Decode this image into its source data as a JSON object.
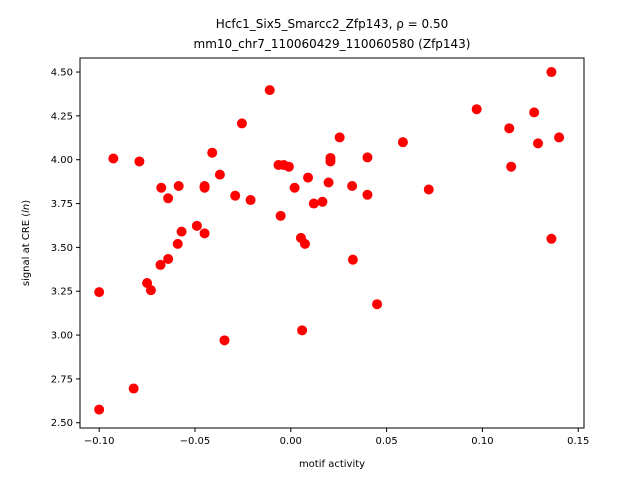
{
  "chart_data": {
    "type": "scatter",
    "title_line1": "Hcfc1_Six5_Smarcc2_Zfp143, ρ = 0.50",
    "title_line2": "mm10_chr7_110060429_110060580 (Zfp143)",
    "xlabel": "motif activity",
    "ylabel": "signal at CRE (ln)",
    "xlim": [
      -0.11,
      0.153
    ],
    "ylim": [
      2.47,
      4.58
    ],
    "xticks": [
      -0.1,
      -0.05,
      0.0,
      0.05,
      0.1,
      0.15
    ],
    "xtick_labels": [
      "−0.10",
      "−0.05",
      "0.00",
      "0.05",
      "0.10",
      "0.15"
    ],
    "yticks": [
      2.5,
      2.75,
      3.0,
      3.25,
      3.5,
      3.75,
      4.0,
      4.25,
      4.5
    ],
    "ytick_labels": [
      "2.50",
      "2.75",
      "3.00",
      "3.25",
      "3.50",
      "3.75",
      "4.00",
      "4.25",
      "4.50"
    ],
    "marker_color": "#ff0000",
    "points": [
      [
        -0.1,
        3.245
      ],
      [
        -0.1,
        2.575
      ],
      [
        -0.0926,
        4.007
      ],
      [
        -0.082,
        2.695
      ],
      [
        -0.079,
        3.99
      ],
      [
        -0.075,
        3.297
      ],
      [
        -0.073,
        3.256
      ],
      [
        -0.068,
        3.4
      ],
      [
        -0.0676,
        3.84
      ],
      [
        -0.064,
        3.78
      ],
      [
        -0.064,
        3.434
      ],
      [
        -0.059,
        3.52
      ],
      [
        -0.0585,
        3.85
      ],
      [
        -0.057,
        3.59
      ],
      [
        -0.049,
        3.623
      ],
      [
        -0.045,
        3.85
      ],
      [
        -0.045,
        3.84
      ],
      [
        -0.045,
        3.58
      ],
      [
        -0.041,
        4.04
      ],
      [
        -0.037,
        3.915
      ],
      [
        -0.0346,
        2.97
      ],
      [
        -0.029,
        3.795
      ],
      [
        -0.0255,
        4.207
      ],
      [
        -0.021,
        3.77
      ],
      [
        -0.011,
        4.397
      ],
      [
        -0.0064,
        3.97
      ],
      [
        -0.0053,
        3.68
      ],
      [
        -0.0037,
        3.97
      ],
      [
        -0.001,
        3.96
      ],
      [
        0.002,
        3.84
      ],
      [
        0.0053,
        3.554
      ],
      [
        0.0059,
        3.027
      ],
      [
        0.0074,
        3.52
      ],
      [
        0.009,
        3.898
      ],
      [
        0.012,
        3.75
      ],
      [
        0.0165,
        3.76
      ],
      [
        0.0197,
        3.87
      ],
      [
        0.0207,
        4.01
      ],
      [
        0.0207,
        3.99
      ],
      [
        0.0255,
        4.127
      ],
      [
        0.032,
        3.85
      ],
      [
        0.0324,
        3.43
      ],
      [
        0.04,
        4.013
      ],
      [
        0.04,
        3.8
      ],
      [
        0.045,
        3.176
      ],
      [
        0.0585,
        4.1
      ],
      [
        0.072,
        3.83
      ],
      [
        0.097,
        4.288
      ],
      [
        0.114,
        4.179
      ],
      [
        0.115,
        3.96
      ],
      [
        0.127,
        4.27
      ],
      [
        0.129,
        4.093
      ],
      [
        0.136,
        4.5
      ],
      [
        0.136,
        3.549
      ],
      [
        0.14,
        4.127
      ]
    ]
  }
}
